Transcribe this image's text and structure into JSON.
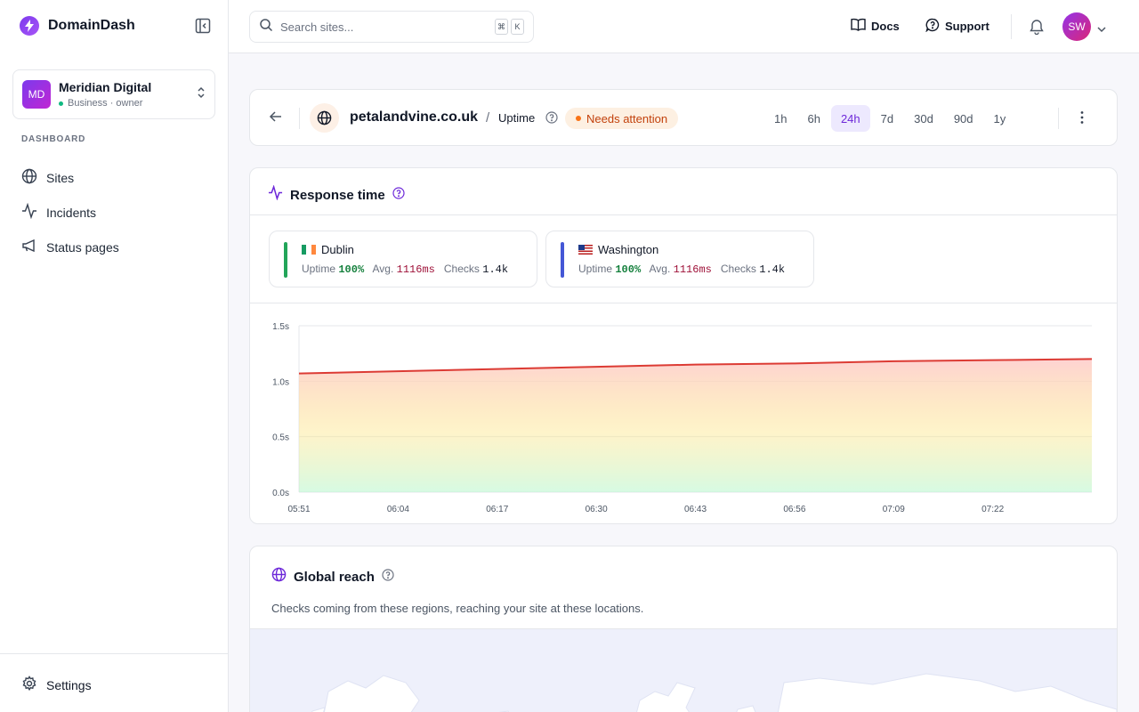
{
  "app": {
    "name": "DomainDash"
  },
  "org": {
    "initials": "MD",
    "name": "Meridian Digital",
    "plan": "Business · owner"
  },
  "sidebar": {
    "section": "DASHBOARD",
    "items": [
      {
        "label": "Sites",
        "icon": "globe-icon"
      },
      {
        "label": "Incidents",
        "icon": "activity-icon"
      },
      {
        "label": "Status pages",
        "icon": "megaphone-icon"
      }
    ],
    "settings": "Settings"
  },
  "topbar": {
    "search_placeholder": "Search sites...",
    "shortcut": [
      "⌘",
      "K"
    ],
    "docs": "Docs",
    "support": "Support",
    "user_initials": "SW"
  },
  "header": {
    "site": "petalandvine.co.uk",
    "separator": "/",
    "page": "Uptime",
    "status": "Needs attention",
    "ranges": [
      "1h",
      "6h",
      "24h",
      "7d",
      "30d",
      "90d",
      "1y"
    ],
    "active_range": "24h"
  },
  "response": {
    "title": "Response time",
    "uptime_label": "Uptime",
    "avg_label": "Avg.",
    "checks_label": "Checks",
    "locations": [
      {
        "name": "Dublin",
        "flag": "ireland-flag-icon",
        "uptime": "100%",
        "avg": "1116ms",
        "checks": "1.4k",
        "color": "#22a559"
      },
      {
        "name": "Washington",
        "flag": "usa-flag-icon",
        "uptime": "100%",
        "avg": "1116ms",
        "checks": "1.4k",
        "color": "#4457d6"
      }
    ]
  },
  "chart_data": {
    "type": "area",
    "title": "",
    "xlabel": "",
    "ylabel": "",
    "x": [
      "05:51",
      "06:04",
      "06:17",
      "06:30",
      "06:43",
      "06:56",
      "07:09",
      "07:22",
      "07:32"
    ],
    "x_ticks": [
      "05:51",
      "06:04",
      "06:17",
      "06:30",
      "06:43",
      "06:56",
      "07:09",
      "07:22"
    ],
    "y_ticks": [
      "1.5s",
      "1.0s",
      "0.5s",
      "0.0s"
    ],
    "ylim": [
      0,
      1.5
    ],
    "series": [
      {
        "values": [
          1.07,
          1.09,
          1.11,
          1.13,
          1.15,
          1.16,
          1.18,
          1.19,
          1.2
        ]
      }
    ],
    "line_color": "#dc3b34",
    "grid": true
  },
  "reach": {
    "title": "Global reach",
    "description": "Checks coming from these regions, reaching your site at these locations."
  }
}
